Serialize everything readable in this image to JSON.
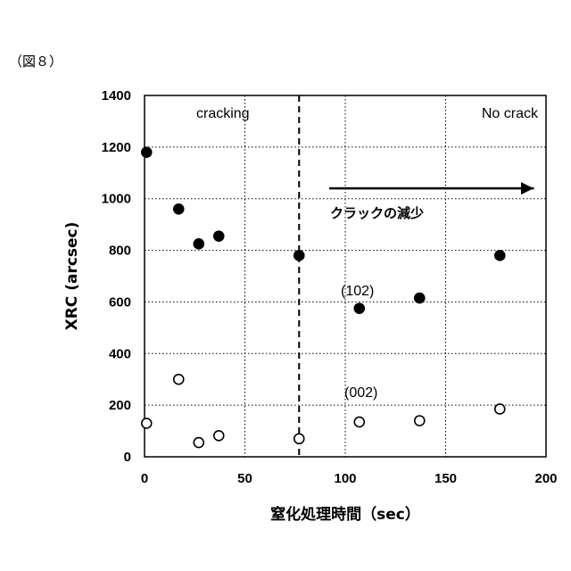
{
  "figure_label": "（図８）",
  "chart_data": {
    "type": "scatter",
    "title": "",
    "xlabel": "窒化処理時間（sec）",
    "ylabel": "XRC  (arcsec)",
    "xlim": [
      0,
      200
    ],
    "ylim": [
      0,
      1400
    ],
    "xticks": [
      0,
      50,
      100,
      150,
      200
    ],
    "yticks": [
      0,
      200,
      400,
      600,
      800,
      1000,
      1200,
      1400
    ],
    "grid": true,
    "series": [
      {
        "name": "(102)",
        "marker": "filled-circle",
        "x": [
          1,
          17,
          27,
          37,
          77,
          107,
          137,
          177
        ],
        "y": [
          1180,
          960,
          825,
          855,
          780,
          575,
          615,
          780
        ]
      },
      {
        "name": "(002)",
        "marker": "open-circle",
        "x": [
          1,
          17,
          27,
          37,
          77,
          107,
          137,
          177
        ],
        "y": [
          130,
          300,
          55,
          82,
          70,
          135,
          140,
          185
        ]
      }
    ],
    "divider_x": 77,
    "annotations": {
      "left_region": "cracking",
      "right_region": "No crack",
      "arrow_label": "クラックの減少",
      "series_102_label": "(102)",
      "series_002_label": "(002)"
    }
  }
}
